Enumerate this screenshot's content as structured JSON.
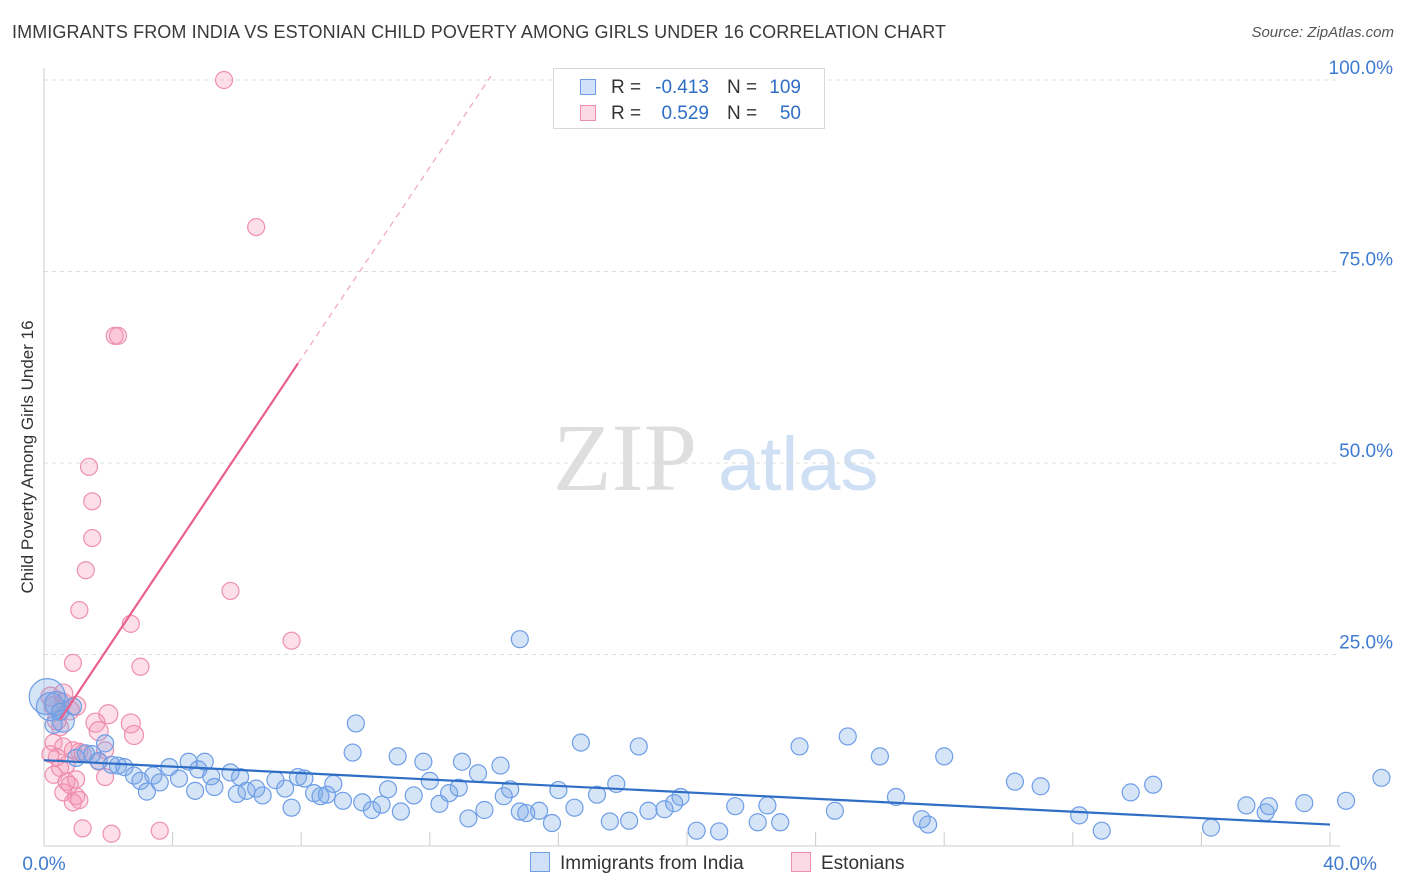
{
  "title": "IMMIGRANTS FROM INDIA VS ESTONIAN CHILD POVERTY AMONG GIRLS UNDER 16 CORRELATION CHART",
  "source": "Source: ZipAtlas.com",
  "watermark": {
    "zip": "ZIP",
    "atlas": "atlas"
  },
  "legend": {
    "rows": [
      {
        "r_label": "R =",
        "r_value": "-0.413",
        "n_label": "N =",
        "n_value": "109"
      },
      {
        "r_label": "R =",
        "r_value": "0.529",
        "n_label": "N =",
        "n_value": "50"
      }
    ]
  },
  "bottom_legend": {
    "india": "Immigrants from India",
    "estonians": "Estonians"
  },
  "colors": {
    "india_fill": "rgba(120,165,230,0.30)",
    "india_stroke": "#6e9ee6",
    "india_line": "#2f6ec5",
    "estonian_fill": "rgba(245,150,180,0.30)",
    "estonian_stroke": "#ee8fae",
    "estonian_line": "#e8608e",
    "tick_label": "#3f7bd1",
    "grid": "#dcdcdc"
  },
  "chart_data": {
    "type": "scatter",
    "title": "IMMIGRANTS FROM INDIA VS ESTONIAN CHILD POVERTY AMONG GIRLS UNDER 16 CORRELATION CHART",
    "xlabel": "",
    "ylabel": "Child Poverty Among Girls Under 16",
    "xlim": [
      0,
      40
    ],
    "ylim": [
      0,
      100
    ],
    "x_tick_labels": [
      "0.0%",
      "40.0%"
    ],
    "y_tick_labels": [
      "25.0%",
      "50.0%",
      "75.0%",
      "100.0%"
    ],
    "y_ticks": [
      25,
      50,
      75,
      100
    ],
    "grid": true,
    "legend_placement": "top-center",
    "series": [
      {
        "name": "Immigrants from India",
        "r": -0.413,
        "n": 109,
        "trend": {
          "x": [
            0,
            40
          ],
          "y": [
            11.2,
            2.8
          ]
        },
        "points": [
          [
            0.1,
            19.5
          ],
          [
            0.2,
            18.2
          ],
          [
            0.4,
            18.6
          ],
          [
            0.6,
            16.3
          ],
          [
            0.9,
            18.2
          ],
          [
            1.3,
            12.1
          ],
          [
            1.5,
            12.0
          ],
          [
            1.7,
            11.1
          ],
          [
            1.9,
            13.4
          ],
          [
            2.3,
            10.5
          ],
          [
            2.5,
            10.3
          ],
          [
            2.8,
            9.2
          ],
          [
            3.0,
            8.5
          ],
          [
            3.2,
            7.1
          ],
          [
            3.4,
            9.2
          ],
          [
            3.9,
            10.3
          ],
          [
            4.2,
            8.8
          ],
          [
            4.5,
            11.0
          ],
          [
            4.7,
            7.2
          ],
          [
            5.0,
            11.0
          ],
          [
            5.2,
            9.1
          ],
          [
            5.3,
            7.7
          ],
          [
            5.8,
            9.6
          ],
          [
            6.0,
            6.8
          ],
          [
            6.3,
            7.2
          ],
          [
            6.6,
            7.5
          ],
          [
            6.8,
            6.6
          ],
          [
            7.2,
            8.6
          ],
          [
            7.5,
            7.5
          ],
          [
            7.7,
            5.0
          ],
          [
            7.9,
            9.0
          ],
          [
            8.1,
            8.8
          ],
          [
            8.4,
            6.9
          ],
          [
            8.6,
            6.5
          ],
          [
            9.0,
            8.1
          ],
          [
            9.3,
            5.9
          ],
          [
            9.6,
            12.2
          ],
          [
            9.7,
            16.0
          ],
          [
            9.9,
            5.7
          ],
          [
            10.2,
            4.7
          ],
          [
            10.5,
            5.4
          ],
          [
            10.7,
            7.4
          ],
          [
            11.0,
            11.7
          ],
          [
            11.1,
            4.5
          ],
          [
            11.5,
            6.6
          ],
          [
            11.8,
            11.0
          ],
          [
            12.0,
            8.5
          ],
          [
            12.3,
            5.5
          ],
          [
            12.6,
            6.9
          ],
          [
            12.9,
            7.6
          ],
          [
            13.0,
            11.0
          ],
          [
            13.2,
            3.6
          ],
          [
            13.5,
            9.5
          ],
          [
            13.7,
            4.7
          ],
          [
            14.2,
            10.5
          ],
          [
            14.3,
            6.5
          ],
          [
            14.5,
            7.4
          ],
          [
            14.8,
            4.5
          ],
          [
            15.0,
            4.3
          ],
          [
            15.4,
            4.6
          ],
          [
            15.8,
            3.0
          ],
          [
            14.8,
            27.0
          ],
          [
            16.0,
            7.3
          ],
          [
            16.5,
            5.0
          ],
          [
            16.7,
            13.5
          ],
          [
            17.2,
            6.7
          ],
          [
            17.6,
            3.2
          ],
          [
            17.8,
            8.1
          ],
          [
            18.2,
            3.3
          ],
          [
            18.5,
            13.0
          ],
          [
            18.8,
            4.6
          ],
          [
            19.3,
            4.8
          ],
          [
            19.6,
            5.6
          ],
          [
            19.8,
            6.4
          ],
          [
            20.3,
            2.0
          ],
          [
            21.0,
            1.9
          ],
          [
            21.5,
            5.2
          ],
          [
            22.2,
            3.1
          ],
          [
            22.5,
            5.3
          ],
          [
            22.9,
            3.1
          ],
          [
            23.5,
            13.0
          ],
          [
            24.6,
            4.6
          ],
          [
            25.0,
            14.3
          ],
          [
            26.0,
            11.7
          ],
          [
            26.5,
            6.4
          ],
          [
            27.3,
            3.5
          ],
          [
            27.5,
            2.8
          ],
          [
            28.0,
            11.7
          ],
          [
            30.2,
            8.4
          ],
          [
            31.0,
            7.8
          ],
          [
            32.2,
            4.0
          ],
          [
            32.9,
            2.0
          ],
          [
            33.8,
            7.0
          ],
          [
            34.5,
            8.0
          ],
          [
            36.3,
            2.4
          ],
          [
            37.4,
            5.3
          ],
          [
            38.0,
            4.4
          ],
          [
            38.1,
            5.2
          ],
          [
            39.2,
            5.6
          ],
          [
            40.5,
            5.9
          ],
          [
            41.6,
            8.9
          ],
          [
            0.3,
            15.8
          ],
          [
            0.5,
            17.5
          ],
          [
            1.0,
            11.5
          ],
          [
            2.1,
            10.6
          ],
          [
            3.6,
            8.3
          ],
          [
            4.8,
            10.0
          ],
          [
            6.1,
            9.0
          ],
          [
            8.8,
            6.7
          ]
        ]
      },
      {
        "name": "Estonians",
        "r": 0.529,
        "n": 50,
        "trend": {
          "x": [
            0.5,
            7.9
          ],
          "y": [
            16.5,
            63.0
          ],
          "dashed_x": [
            7.9,
            13.9
          ],
          "dashed_y": [
            63.0,
            100.5
          ]
        },
        "points": [
          [
            5.6,
            100.0
          ],
          [
            6.6,
            80.8
          ],
          [
            2.2,
            66.6
          ],
          [
            2.3,
            66.6
          ],
          [
            1.4,
            49.5
          ],
          [
            1.5,
            45.0
          ],
          [
            1.5,
            40.2
          ],
          [
            1.3,
            36.0
          ],
          [
            1.1,
            30.8
          ],
          [
            2.7,
            29.0
          ],
          [
            5.8,
            33.3
          ],
          [
            7.7,
            26.8
          ],
          [
            0.9,
            23.9
          ],
          [
            3.0,
            23.4
          ],
          [
            0.2,
            19.5
          ],
          [
            0.3,
            18.3
          ],
          [
            0.6,
            19.9
          ],
          [
            1.0,
            18.3
          ],
          [
            0.4,
            16.4
          ],
          [
            0.8,
            17.7
          ],
          [
            2.0,
            17.2
          ],
          [
            1.6,
            16.1
          ],
          [
            1.7,
            15.0
          ],
          [
            2.7,
            16.0
          ],
          [
            2.8,
            14.5
          ],
          [
            0.5,
            15.5
          ],
          [
            0.3,
            13.5
          ],
          [
            0.6,
            13.0
          ],
          [
            0.9,
            12.5
          ],
          [
            1.1,
            12.3
          ],
          [
            1.7,
            11.0
          ],
          [
            1.9,
            12.5
          ],
          [
            0.2,
            12.0
          ],
          [
            0.4,
            11.6
          ],
          [
            0.7,
            10.6
          ],
          [
            1.2,
            12.1
          ],
          [
            0.3,
            9.3
          ],
          [
            0.5,
            10.2
          ],
          [
            0.7,
            8.4
          ],
          [
            1.0,
            8.7
          ],
          [
            0.8,
            8.0
          ],
          [
            1.9,
            9.0
          ],
          [
            0.6,
            7.0
          ],
          [
            1.0,
            6.5
          ],
          [
            1.1,
            6.0
          ],
          [
            0.9,
            5.7
          ],
          [
            1.2,
            2.3
          ],
          [
            2.1,
            1.6
          ],
          [
            3.6,
            2.0
          ],
          [
            0.6,
            18.8
          ]
        ]
      }
    ]
  }
}
